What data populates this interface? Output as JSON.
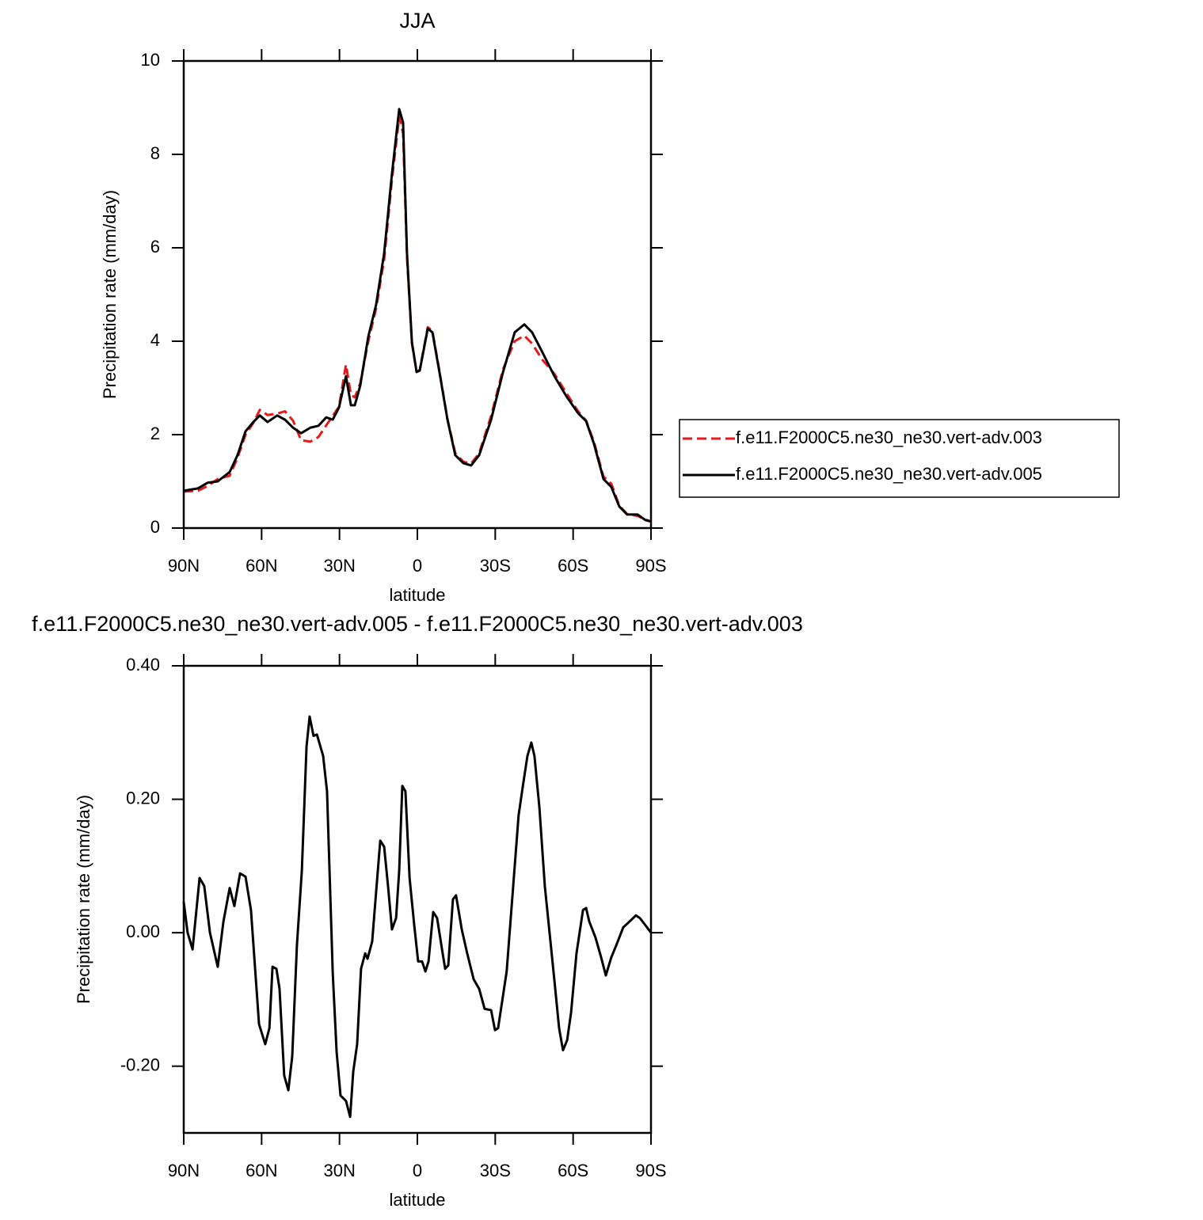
{
  "chart_data": [
    {
      "type": "line",
      "title": "JJA",
      "xlabel": "latitude",
      "ylabel": "Precipitation rate (mm/day)",
      "x": [
        90,
        84.5,
        80.8,
        76.9,
        72.3,
        69.3,
        66.2,
        63.2,
        60.7,
        57.7,
        54,
        51,
        47.9,
        44.8,
        41.2,
        38.1,
        35.1,
        32.6,
        30.2,
        27.5,
        25.6,
        24.1,
        22,
        18.9,
        15.9,
        12.8,
        9.8,
        7,
        5.5,
        4,
        2.1,
        0.3,
        -0.9,
        -4,
        -5.8,
        -8.5,
        -11.6,
        -14.6,
        -17.7,
        -20.7,
        -23.8,
        -28.4,
        -33,
        -37.5,
        -41.2,
        -44.2,
        -48.2,
        -52.8,
        -57.3,
        -61.9,
        -65,
        -68,
        -71.7,
        -74.7,
        -77.8,
        -80.8,
        -84.8,
        -87.9,
        -90
      ],
      "series": [
        {
          "name": "f.e11.F2000C5.ne30_ne30.vert-adv.003",
          "color": "#e41a1c",
          "linestyle": "dashed",
          "values": [
            0.78,
            0.8,
            0.9,
            1.05,
            1.12,
            1.5,
            2.0,
            2.25,
            2.53,
            2.42,
            2.45,
            2.5,
            2.3,
            1.88,
            1.85,
            1.95,
            2.2,
            2.4,
            2.6,
            3.5,
            2.85,
            2.8,
            3.1,
            4.0,
            4.7,
            5.75,
            7.45,
            8.8,
            8.45,
            5.8,
            3.95,
            3.35,
            3.38,
            4.3,
            4.22,
            3.36,
            2.33,
            1.6,
            1.42,
            1.38,
            1.6,
            2.4,
            3.4,
            4.0,
            4.12,
            3.95,
            3.6,
            3.3,
            2.9,
            2.5,
            2.3,
            1.85,
            1.1,
            0.95,
            0.48,
            0.3,
            0.26,
            0.18,
            0.14
          ]
        },
        {
          "name": "f.e11.F2000C5.ne30_ne30.vert-adv.005",
          "color": "#000000",
          "linestyle": "solid",
          "values": [
            0.8,
            0.85,
            0.97,
            1.0,
            1.2,
            1.56,
            2.07,
            2.27,
            2.41,
            2.27,
            2.41,
            2.32,
            2.15,
            2.03,
            2.15,
            2.19,
            2.37,
            2.32,
            2.58,
            3.25,
            2.63,
            2.63,
            3.05,
            4.1,
            4.78,
            5.88,
            7.58,
            8.97,
            8.68,
            5.88,
            3.98,
            3.34,
            3.37,
            4.27,
            4.19,
            3.34,
            2.32,
            1.56,
            1.39,
            1.34,
            1.56,
            2.32,
            3.34,
            4.19,
            4.36,
            4.19,
            3.76,
            3.25,
            2.83,
            2.46,
            2.29,
            1.81,
            1.05,
            0.88,
            0.46,
            0.29,
            0.29,
            0.17,
            0.14
          ]
        }
      ],
      "xlim": [
        90,
        -90
      ],
      "xticks": [
        {
          "value": 90,
          "label": "90N"
        },
        {
          "value": 60,
          "label": "60N"
        },
        {
          "value": 30,
          "label": "30N"
        },
        0,
        {
          "value": -30,
          "label": "30S"
        },
        {
          "value": -60,
          "label": "60S"
        },
        {
          "value": -90,
          "label": "90S"
        }
      ],
      "ylim": [
        0,
        10
      ],
      "yticks": [
        0,
        2,
        4,
        6,
        8,
        10
      ],
      "legend": "right"
    },
    {
      "type": "line",
      "title": "f.e11.F2000C5.ne30_ne30.vert-adv.005 - f.e11.F2000C5.ne30_ne30.vert-adv.003",
      "xlabel": "latitude",
      "ylabel": "Precipitation rate (mm/day)",
      "x": [
        90,
        88.5,
        86.6,
        83.9,
        82.1,
        79.9,
        76.9,
        74.7,
        72.3,
        70.5,
        68.3,
        66.2,
        64.1,
        61,
        58.6,
        57,
        55.8,
        54.3,
        53.1,
        51.3,
        49.7,
        48.2,
        46.4,
        44.5,
        42.7,
        41.5,
        40,
        38.7,
        36.3,
        34.8,
        32.6,
        31.1,
        29.6,
        27.5,
        25.9,
        24.7,
        23.2,
        21.7,
        20.1,
        19.2,
        17.4,
        16.2,
        14.3,
        12.8,
        11.3,
        9.8,
        8.2,
        7,
        5.8,
        4.6,
        3,
        1.2,
        -0.3,
        -1.8,
        -3.1,
        -4.3,
        -6.1,
        -7.6,
        -9.5,
        -10.7,
        -11.9,
        -13.7,
        -14.9,
        -17.1,
        -19.2,
        -21.7,
        -23.8,
        -25.9,
        -28.4,
        -29.9,
        -31.1,
        -34.4,
        -39,
        -40.8,
        -42.4,
        -43.9,
        -45.1,
        -47,
        -49.1,
        -52.8,
        -54.6,
        -56.1,
        -57.7,
        -59.2,
        -61.3,
        -63.8,
        -65,
        -66.2,
        -68.6,
        -70.8,
        -72.6,
        -74.7,
        -76.6,
        -79.3,
        -81.8,
        -84.2,
        -85.7,
        -87.9,
        -90
      ],
      "series": [
        {
          "color": "#000000",
          "linestyle": "solid",
          "values": [
            0.046,
            0.0,
            -0.025,
            0.082,
            0.07,
            0.0,
            -0.051,
            0.017,
            0.067,
            0.04,
            0.089,
            0.084,
            0.034,
            -0.137,
            -0.167,
            -0.143,
            -0.051,
            -0.054,
            -0.084,
            -0.214,
            -0.236,
            -0.185,
            -0.019,
            0.093,
            0.279,
            0.324,
            0.295,
            0.297,
            0.265,
            0.212,
            -0.06,
            -0.179,
            -0.244,
            -0.252,
            -0.276,
            -0.208,
            -0.167,
            -0.054,
            -0.031,
            -0.039,
            -0.013,
            0.046,
            0.138,
            0.129,
            0.07,
            0.005,
            0.022,
            0.093,
            0.22,
            0.212,
            0.082,
            0.011,
            -0.043,
            -0.043,
            -0.058,
            -0.043,
            0.031,
            0.022,
            -0.025,
            -0.054,
            -0.049,
            0.05,
            0.056,
            0.005,
            -0.031,
            -0.07,
            -0.084,
            -0.114,
            -0.116,
            -0.146,
            -0.143,
            -0.058,
            0.176,
            0.224,
            0.265,
            0.285,
            0.265,
            0.188,
            0.07,
            -0.072,
            -0.143,
            -0.176,
            -0.161,
            -0.12,
            -0.031,
            0.034,
            0.037,
            0.017,
            -0.007,
            -0.037,
            -0.064,
            -0.037,
            -0.019,
            0.008,
            0.017,
            0.026,
            0.022,
            0.011,
            0.0
          ]
        }
      ],
      "xlim": [
        90,
        -90
      ],
      "xticks": [
        {
          "value": 90,
          "label": "90N"
        },
        {
          "value": 60,
          "label": "60N"
        },
        {
          "value": 30,
          "label": "30N"
        },
        0,
        {
          "value": -30,
          "label": "30S"
        },
        {
          "value": -60,
          "label": "60S"
        },
        {
          "value": -90,
          "label": "90S"
        }
      ],
      "ylim": [
        -0.3,
        0.4
      ],
      "yticks": [
        {
          "value": -0.2,
          "label": "-0.20"
        },
        {
          "value": 0,
          "label": "0.00"
        },
        {
          "value": 0.2,
          "label": "0.20"
        },
        {
          "value": 0.4,
          "label": "0.40"
        }
      ]
    }
  ]
}
